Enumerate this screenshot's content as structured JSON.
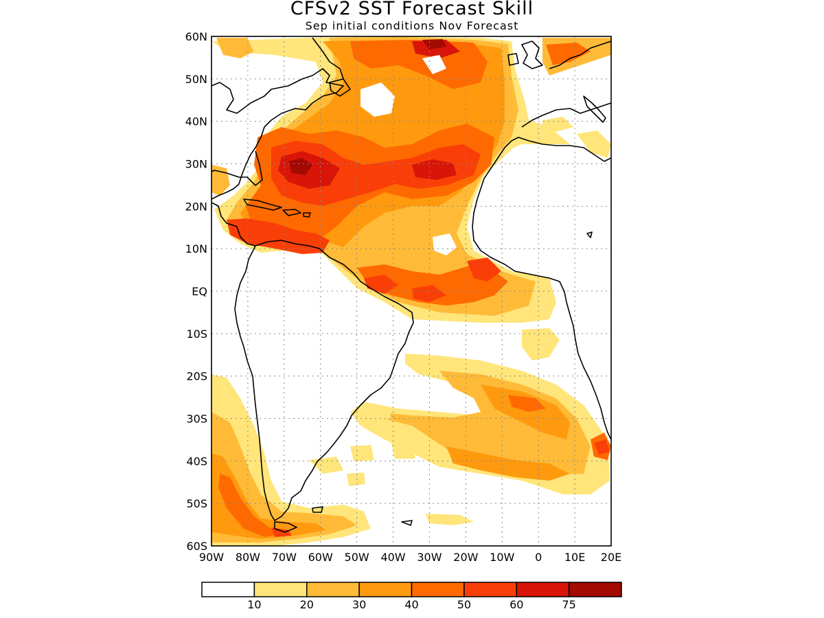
{
  "title": "CFSv2 SST Forecast Skill",
  "subtitle": "Sep initial conditions   Nov Forecast",
  "lat_ticks": [
    "60N",
    "50N",
    "40N",
    "30N",
    "20N",
    "10N",
    "EQ",
    "10S",
    "20S",
    "30S",
    "40S",
    "50S",
    "60S"
  ],
  "lon_ticks": [
    "90W",
    "80W",
    "70W",
    "60W",
    "50W",
    "40W",
    "30W",
    "20W",
    "10W",
    "0",
    "10E",
    "20E"
  ],
  "map": {
    "lon_range": [
      -90,
      20
    ],
    "lat_range": [
      -60,
      60
    ],
    "grid": "dotted"
  },
  "colorbar": {
    "bins": [
      {
        "color": "#ffffff"
      },
      {
        "color": "#ffe57a",
        "label": "10"
      },
      {
        "color": "#ffbb38",
        "label": "20"
      },
      {
        "color": "#ff9a0e",
        "label": "30"
      },
      {
        "color": "#ff6a00",
        "label": "40"
      },
      {
        "color": "#f93e08",
        "label": "50"
      },
      {
        "color": "#d81508",
        "label": "60"
      },
      {
        "color": "#a30a02",
        "label": "75"
      }
    ]
  }
}
